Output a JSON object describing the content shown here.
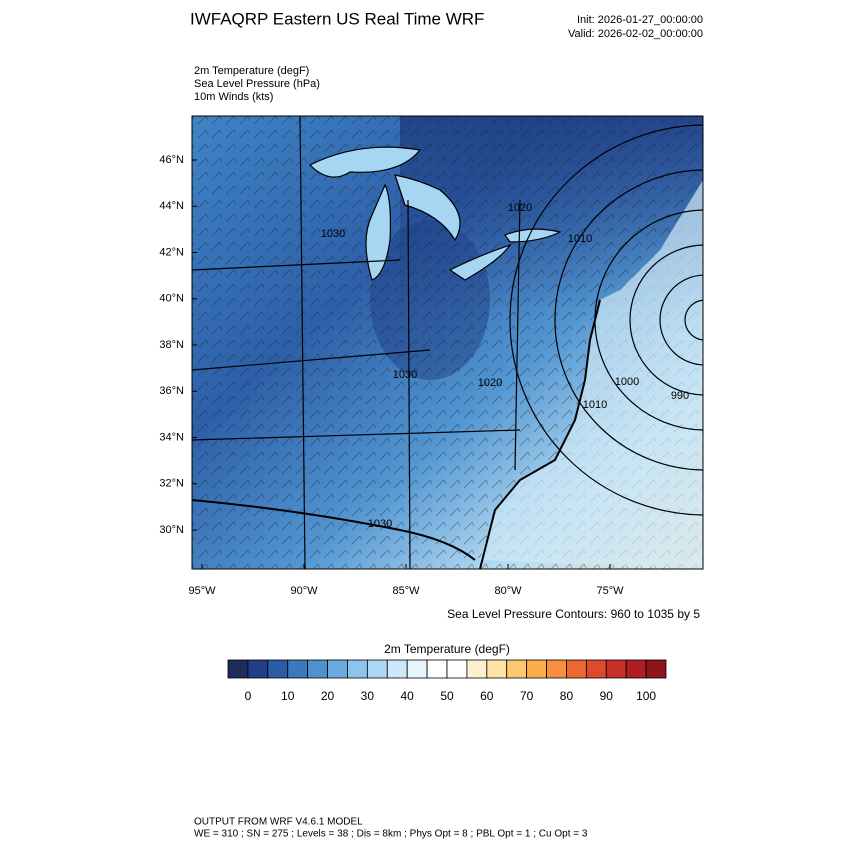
{
  "header": {
    "title": "IWFAQRP Eastern US Real Time WRF",
    "init": "Init: 2026-01-27_00:00:00",
    "valid": "Valid: 2026-02-02_00:00:00"
  },
  "fields": [
    "2m Temperature   (degF)",
    "Sea Level Pressure   (hPa)",
    "10m Winds   (kts)"
  ],
  "lat_labels": [
    "46°N",
    "44°N",
    "42°N",
    "40°N",
    "38°N",
    "36°N",
    "34°N",
    "32°N",
    "30°N"
  ],
  "lon_labels": [
    "95°W",
    "90°W",
    "85°W",
    "80°W",
    "75°W"
  ],
  "contour_labels": [
    "1020",
    "1010",
    "1030",
    "1030",
    "1020",
    "1000",
    "990",
    "1010",
    "1030"
  ],
  "contour_note": "Sea Level Pressure Contours: 960 to 1035 by 5",
  "colorbar": {
    "title": "2m Temperature  (degF)",
    "labels": [
      0,
      10,
      20,
      30,
      40,
      50,
      60,
      70,
      80,
      90,
      100
    ],
    "colors": [
      "#1c2c5c",
      "#203f85",
      "#2b5ca6",
      "#3b78bd",
      "#4d92cf",
      "#6aabdf",
      "#8cc4ec",
      "#add8f3",
      "#cde8f8",
      "#e6f4fc",
      "#ffffff",
      "#ffffff",
      "#fdf0d0",
      "#fde3a5",
      "#fcc96f",
      "#fbae49",
      "#f6903c",
      "#ec6833",
      "#de4a2c",
      "#c8302a",
      "#b01e24",
      "#8c161c"
    ]
  },
  "footer": [
    "OUTPUT FROM WRF V4.6.1 MODEL",
    "WE = 310 ; SN = 275 ; Levels = 38 ; Dis = 8km ; Phys Opt = 8 ; PBL Opt = 1 ; Cu Opt = 3"
  ]
}
